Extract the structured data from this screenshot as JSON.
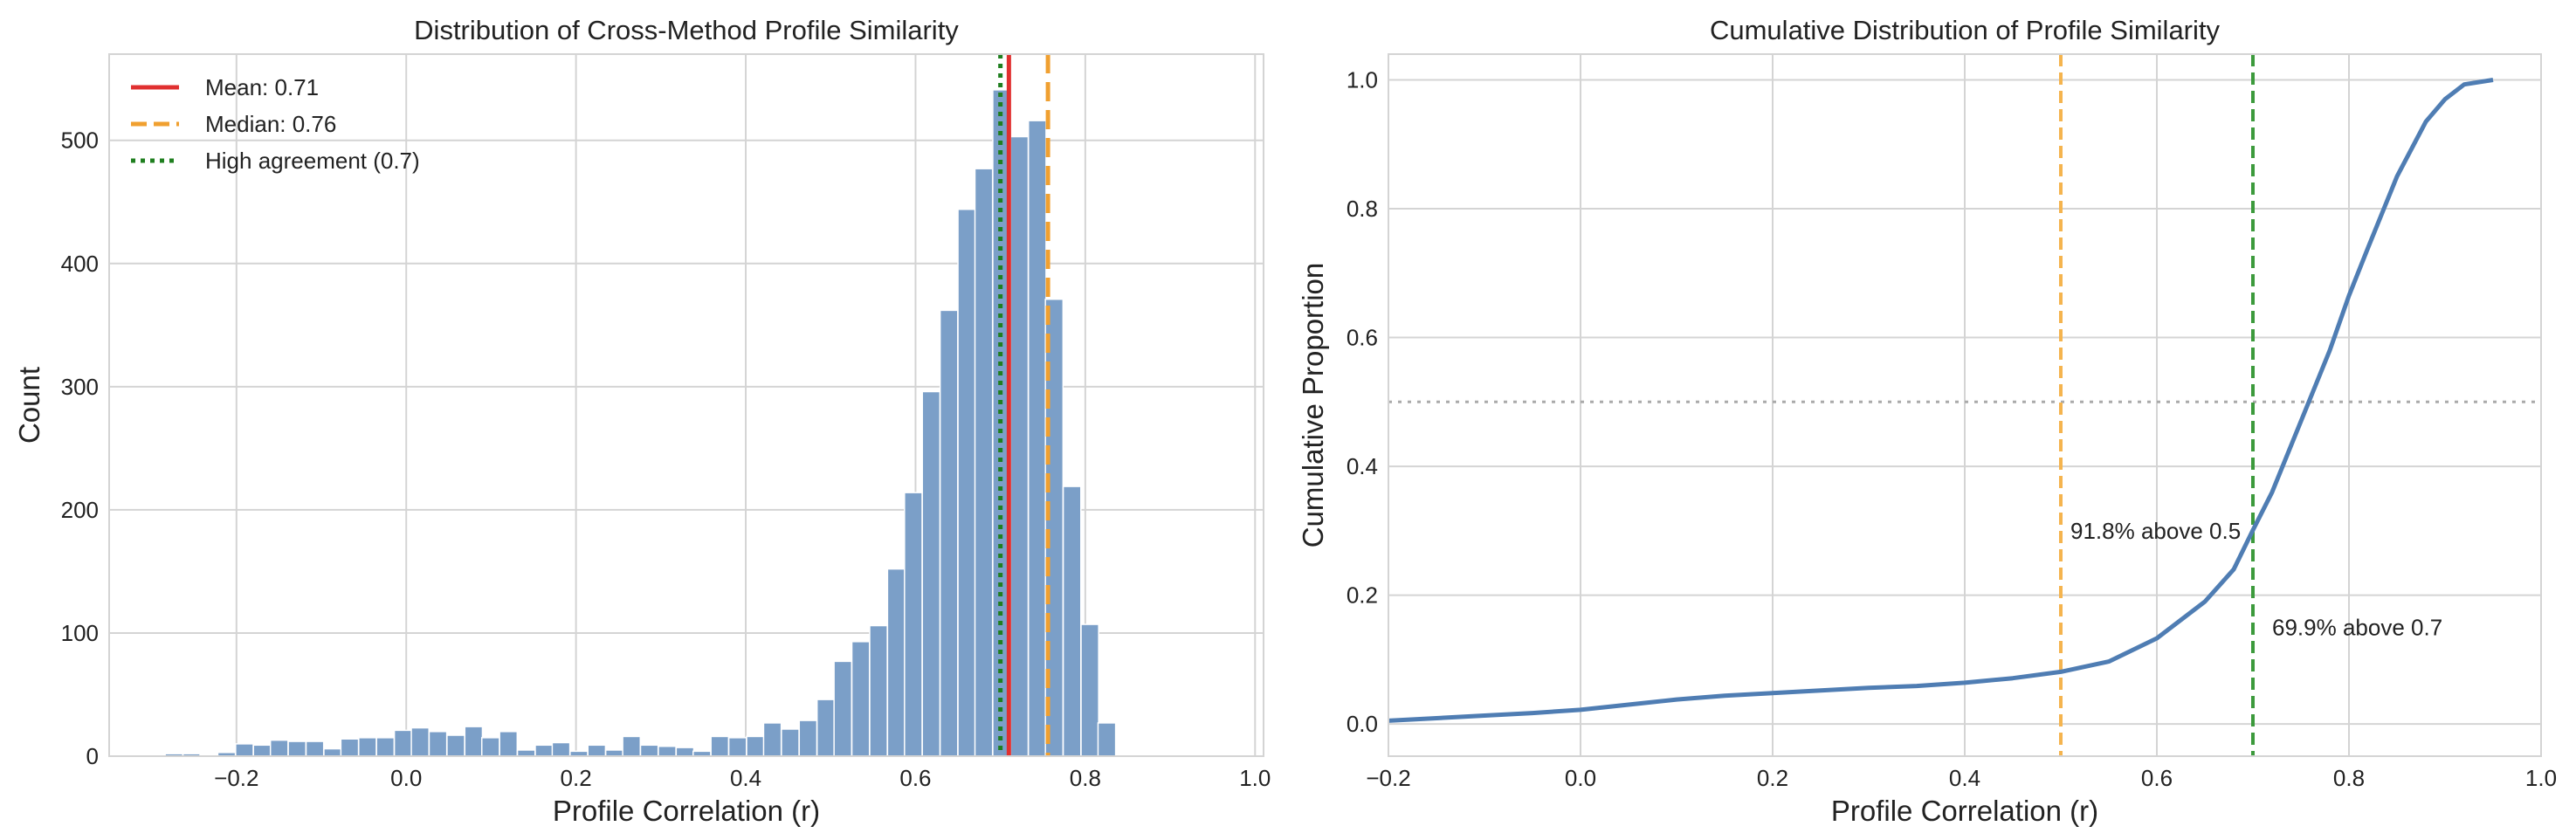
{
  "chart_data": [
    {
      "type": "bar",
      "title": "Distribution of Cross-Method Profile Similarity",
      "xlabel": "Profile Correlation (r)",
      "ylabel": "Count",
      "xlim": [
        -0.35,
        1.01
      ],
      "ylim": [
        0,
        570
      ],
      "xticks": [
        -0.2,
        0.0,
        0.2,
        0.4,
        0.6,
        0.8,
        1.0
      ],
      "xtick_labels": [
        "−0.2",
        "0.0",
        "0.2",
        "0.4",
        "0.6",
        "0.8",
        "1.0"
      ],
      "yticks": [
        0,
        100,
        200,
        300,
        400,
        500
      ],
      "ytick_labels": [
        "0",
        "100",
        "200",
        "300",
        "400",
        "500"
      ],
      "bin_width": 0.02075,
      "bins": [
        {
          "x0": -0.284,
          "count": 2
        },
        {
          "x0": -0.263,
          "count": 2
        },
        {
          "x0": -0.243,
          "count": 1
        },
        {
          "x0": -0.222,
          "count": 3
        },
        {
          "x0": -0.201,
          "count": 10
        },
        {
          "x0": -0.18,
          "count": 9
        },
        {
          "x0": -0.16,
          "count": 13
        },
        {
          "x0": -0.139,
          "count": 12
        },
        {
          "x0": -0.118,
          "count": 12
        },
        {
          "x0": -0.097,
          "count": 6
        },
        {
          "x0": -0.077,
          "count": 14
        },
        {
          "x0": -0.056,
          "count": 15
        },
        {
          "x0": -0.035,
          "count": 15
        },
        {
          "x0": -0.014,
          "count": 21
        },
        {
          "x0": 0.006,
          "count": 23
        },
        {
          "x0": 0.027,
          "count": 20
        },
        {
          "x0": 0.048,
          "count": 17
        },
        {
          "x0": 0.069,
          "count": 24
        },
        {
          "x0": 0.089,
          "count": 15
        },
        {
          "x0": 0.11,
          "count": 20
        },
        {
          "x0": 0.131,
          "count": 5
        },
        {
          "x0": 0.152,
          "count": 9
        },
        {
          "x0": 0.172,
          "count": 11
        },
        {
          "x0": 0.193,
          "count": 4
        },
        {
          "x0": 0.214,
          "count": 9
        },
        {
          "x0": 0.235,
          "count": 5
        },
        {
          "x0": 0.255,
          "count": 16
        },
        {
          "x0": 0.276,
          "count": 9
        },
        {
          "x0": 0.297,
          "count": 8
        },
        {
          "x0": 0.318,
          "count": 7
        },
        {
          "x0": 0.338,
          "count": 4
        },
        {
          "x0": 0.359,
          "count": 16
        },
        {
          "x0": 0.38,
          "count": 15
        },
        {
          "x0": 0.401,
          "count": 16
        },
        {
          "x0": 0.421,
          "count": 27
        },
        {
          "x0": 0.442,
          "count": 22
        },
        {
          "x0": 0.463,
          "count": 29
        },
        {
          "x0": 0.484,
          "count": 46
        },
        {
          "x0": 0.504,
          "count": 77
        },
        {
          "x0": 0.525,
          "count": 93
        },
        {
          "x0": 0.546,
          "count": 106
        },
        {
          "x0": 0.567,
          "count": 152
        },
        {
          "x0": 0.587,
          "count": 214
        },
        {
          "x0": 0.608,
          "count": 296
        },
        {
          "x0": 0.629,
          "count": 362
        },
        {
          "x0": 0.65,
          "count": 444
        },
        {
          "x0": 0.67,
          "count": 477
        },
        {
          "x0": 0.691,
          "count": 541
        },
        {
          "x0": 0.712,
          "count": 503
        },
        {
          "x0": 0.733,
          "count": 516
        },
        {
          "x0": 0.753,
          "count": 371
        },
        {
          "x0": 0.774,
          "count": 219
        },
        {
          "x0": 0.795,
          "count": 107
        },
        {
          "x0": 0.815,
          "count": 27
        }
      ],
      "bar_color": "#7b9fc8",
      "grid": true,
      "vlines": [
        {
          "x": 0.71,
          "color": "#e03030",
          "style": "solid",
          "label": "Mean: 0.71"
        },
        {
          "x": 0.756,
          "color": "#f0a030",
          "style": "dashed",
          "label": "Median: 0.76"
        },
        {
          "x": 0.7,
          "color": "#1f7f1f",
          "style": "dotted",
          "label": "High agreement (0.7)"
        }
      ],
      "legend_position": "top-left"
    },
    {
      "type": "line",
      "title": "Cumulative Distribution of Profile Similarity",
      "xlabel": "Profile Correlation (r)",
      "ylabel": "Cumulative Proportion",
      "xlim": [
        -0.2,
        1.0
      ],
      "ylim": [
        -0.05,
        1.04
      ],
      "xticks": [
        -0.2,
        0.0,
        0.2,
        0.4,
        0.6,
        0.8,
        1.0
      ],
      "xtick_labels": [
        "−0.2",
        "0.0",
        "0.2",
        "0.4",
        "0.6",
        "0.8",
        "1.0"
      ],
      "yticks": [
        0.0,
        0.2,
        0.4,
        0.6,
        0.8,
        1.0
      ],
      "ytick_labels": [
        "0.0",
        "0.2",
        "0.4",
        "0.6",
        "0.8",
        "1.0"
      ],
      "line_color": "#4f7db3",
      "series": [
        {
          "name": "ECDF",
          "x": [
            -0.2,
            -0.15,
            -0.1,
            -0.05,
            0.0,
            0.05,
            0.1,
            0.15,
            0.2,
            0.25,
            0.3,
            0.35,
            0.4,
            0.45,
            0.5,
            0.55,
            0.6,
            0.65,
            0.68,
            0.7,
            0.72,
            0.75,
            0.78,
            0.8,
            0.82,
            0.85,
            0.88,
            0.9,
            0.92,
            0.95
          ],
          "y": [
            0.005,
            0.009,
            0.013,
            0.017,
            0.022,
            0.03,
            0.038,
            0.044,
            0.048,
            0.052,
            0.056,
            0.059,
            0.064,
            0.071,
            0.081,
            0.097,
            0.133,
            0.19,
            0.24,
            0.301,
            0.36,
            0.47,
            0.58,
            0.665,
            0.74,
            0.85,
            0.935,
            0.97,
            0.993,
            1.0
          ]
        }
      ],
      "vlines": [
        {
          "x": 0.5,
          "color": "#f5b44e",
          "style": "dashed"
        },
        {
          "x": 0.7,
          "color": "#3c9a3c",
          "style": "dashed"
        }
      ],
      "hlines": [
        {
          "y": 0.5,
          "color": "#aaaaaa",
          "style": "dotted"
        }
      ],
      "annotations": [
        {
          "text": "91.8% above 0.5",
          "x": 0.51,
          "y": 0.3
        },
        {
          "text": "69.9% above 0.7",
          "x": 0.72,
          "y": 0.15
        }
      ],
      "grid": true
    }
  ]
}
